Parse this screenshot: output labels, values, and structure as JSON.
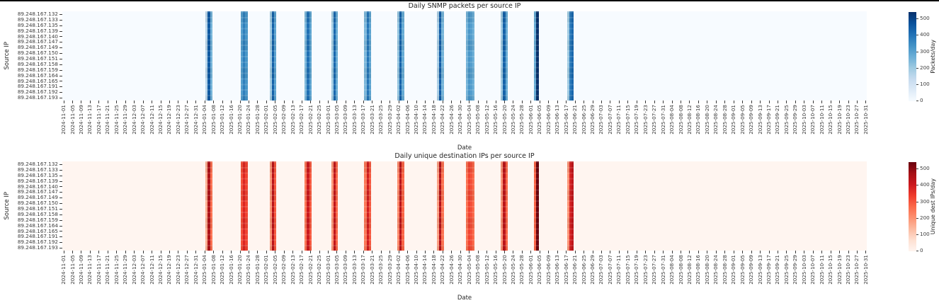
{
  "page": {
    "background": "#ffffff",
    "top_border_color": "#0a0a0a"
  },
  "source_ips": [
    "89.248.167.132",
    "89.248.167.133",
    "89.248.167.135",
    "89.248.167.139",
    "89.248.167.140",
    "89.248.167.147",
    "89.248.167.149",
    "89.248.167.150",
    "89.248.167.151",
    "89.248.167.158",
    "89.248.167.159",
    "89.248.167.164",
    "89.248.167.165",
    "89.248.167.191",
    "89.248.167.192",
    "89.248.167.193"
  ],
  "x_tick_dates": [
    "2024-11-01",
    "2024-11-05",
    "2024-11-09",
    "2024-11-13",
    "2024-11-17",
    "2024-11-21",
    "2024-11-25",
    "2024-11-29",
    "2024-12-03",
    "2024-12-07",
    "2024-12-11",
    "2024-12-15",
    "2024-12-19",
    "2024-12-23",
    "2024-12-27",
    "2024-12-31",
    "2025-01-04",
    "2025-01-08",
    "2025-01-12",
    "2025-01-16",
    "2025-01-20",
    "2025-01-24",
    "2025-01-28",
    "2025-02-01",
    "2025-02-05",
    "2025-02-09",
    "2025-02-13",
    "2025-02-17",
    "2025-02-21",
    "2025-02-25",
    "2025-03-01",
    "2025-03-05",
    "2025-03-09",
    "2025-03-13",
    "2025-03-17",
    "2025-03-21",
    "2025-03-25",
    "2025-03-29",
    "2025-04-02",
    "2025-04-06",
    "2025-04-10",
    "2025-04-14",
    "2025-04-18",
    "2025-04-22",
    "2025-04-26",
    "2025-04-30",
    "2025-05-04",
    "2025-05-08",
    "2025-05-12",
    "2025-05-16",
    "2025-05-20",
    "2025-05-24",
    "2025-05-28",
    "2025-06-01",
    "2025-06-05",
    "2025-06-09",
    "2025-06-13",
    "2025-06-17",
    "2025-06-21",
    "2025-06-25",
    "2025-06-29",
    "2025-07-03",
    "2025-07-07",
    "2025-07-11",
    "2025-07-15",
    "2025-07-19",
    "2025-07-23",
    "2025-07-27",
    "2025-07-31",
    "2025-08-04",
    "2025-08-08",
    "2025-08-12",
    "2025-08-16",
    "2025-08-20",
    "2025-08-24",
    "2025-08-28",
    "2025-09-01",
    "2025-09-05",
    "2025-09-09",
    "2025-09-13",
    "2025-09-17",
    "2025-09-21",
    "2025-09-25",
    "2025-09-29",
    "2025-10-03",
    "2025-10-07",
    "2025-10-11",
    "2025-10-15",
    "2025-10-19",
    "2025-10-23",
    "2025-10-27",
    "2025-10-31"
  ],
  "date_range": {
    "start": "2024-11-01",
    "end": "2025-10-31",
    "total_days": 365,
    "tick_step_days": 4
  },
  "events": [
    {
      "start_date": "2025-01-05",
      "day_index": 65,
      "daily_values": [
        160,
        460,
        260
      ]
    },
    {
      "start_date": "2025-01-21",
      "day_index": 81,
      "daily_values": [
        310,
        380,
        330
      ]
    },
    {
      "start_date": "2025-02-03",
      "day_index": 94,
      "daily_values": [
        200,
        440,
        300
      ]
    },
    {
      "start_date": "2025-02-19",
      "day_index": 110,
      "daily_values": [
        250,
        410,
        300
      ]
    },
    {
      "start_date": "2025-03-03",
      "day_index": 122,
      "daily_values": [
        200,
        430,
        280
      ]
    },
    {
      "start_date": "2025-03-18",
      "day_index": 137,
      "daily_values": [
        250,
        400,
        300
      ]
    },
    {
      "start_date": "2025-04-02",
      "day_index": 152,
      "daily_values": [
        220,
        440,
        280
      ]
    },
    {
      "start_date": "2025-04-20",
      "day_index": 170,
      "daily_values": [
        180,
        450,
        260
      ]
    },
    {
      "start_date": "2025-05-03",
      "day_index": 183,
      "daily_values": [
        260,
        330,
        310,
        270
      ]
    },
    {
      "start_date": "2025-05-19",
      "day_index": 199,
      "daily_values": [
        200,
        440,
        280
      ]
    },
    {
      "start_date": "2025-06-03",
      "day_index": 214,
      "daily_values": [
        280,
        544
      ]
    },
    {
      "start_date": "2025-06-18",
      "day_index": 229,
      "daily_values": [
        200,
        390,
        430
      ]
    }
  ],
  "chart_data": [
    {
      "type": "heatmap",
      "title": "Daily SNMP packets per source IP",
      "xlabel": "Date",
      "ylabel": "Source IP",
      "colorbar_label": "Packets/day",
      "colorbar_ticks": [
        0,
        100,
        200,
        300,
        400,
        500
      ],
      "vmin": 0,
      "vmax": 544,
      "colormap_name": "Blues",
      "colormap_stops": [
        "#f7fbff",
        "#deebf7",
        "#c6dbef",
        "#9ecae1",
        "#6baed6",
        "#4292c6",
        "#2171b5",
        "#08519c",
        "#08306b"
      ],
      "rows_key": "source_ips",
      "columns": "daily dates 2024-11-01 .. 2025-10-31",
      "values_key": "events"
    },
    {
      "type": "heatmap",
      "title": "Daily unique destination IPs per source IP",
      "xlabel": "Date",
      "ylabel": "Source IP",
      "colorbar_label": "Unique dest IPs/day",
      "colorbar_ticks": [
        0,
        100,
        200,
        300,
        400,
        500
      ],
      "vmin": 0,
      "vmax": 544,
      "colormap_name": "Reds",
      "colormap_stops": [
        "#fff5f0",
        "#fee0d2",
        "#fcbba1",
        "#fc9272",
        "#fb6a4a",
        "#ef3b2c",
        "#cb181d",
        "#a50f15",
        "#67000d"
      ],
      "rows_key": "source_ips",
      "columns": "daily dates 2024-11-01 .. 2025-10-31",
      "values_key": "events"
    }
  ]
}
